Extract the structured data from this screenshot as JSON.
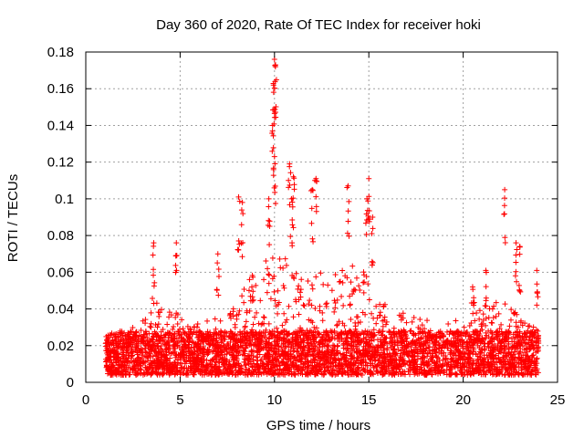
{
  "chart_data": {
    "type": "scatter",
    "title": "Day 360 of 2020, Rate Of TEC Index for receiver hoki",
    "xlabel": "GPS time / hours",
    "ylabel": "ROTI / TECUs",
    "xlim": [
      0,
      25
    ],
    "ylim": [
      0,
      0.18
    ],
    "xticks": [
      0,
      5,
      10,
      15,
      20,
      25
    ],
    "yticks": [
      0,
      0.02,
      0.04,
      0.06,
      0.08,
      0.1,
      0.12,
      0.14,
      0.16,
      0.18
    ],
    "ytick_labels": [
      "0",
      "0.02",
      "0.04",
      "0.06",
      "0.08",
      "0.1",
      "0.12",
      "0.14",
      "0.16",
      "0.18"
    ],
    "grid": true,
    "marker": "+",
    "color": "#ff0000",
    "x_range_of_data": [
      1.05,
      24.0
    ],
    "envelope_description": "dense band of points between roughly 0.005 and 0.03 TECU across the full time range, with elevated activity between about 8 and 16 hours",
    "notable_points": [
      {
        "x": 3.6,
        "y": 0.076
      },
      {
        "x": 4.8,
        "y": 0.076
      },
      {
        "x": 7.0,
        "y": 0.07
      },
      {
        "x": 8.1,
        "y": 0.101
      },
      {
        "x": 8.3,
        "y": 0.098
      },
      {
        "x": 9.7,
        "y": 0.1
      },
      {
        "x": 10.0,
        "y": 0.176
      },
      {
        "x": 10.05,
        "y": 0.172
      },
      {
        "x": 9.95,
        "y": 0.162
      },
      {
        "x": 9.9,
        "y": 0.14
      },
      {
        "x": 10.0,
        "y": 0.123
      },
      {
        "x": 10.8,
        "y": 0.119
      },
      {
        "x": 11.0,
        "y": 0.112
      },
      {
        "x": 10.9,
        "y": 0.1
      },
      {
        "x": 12.2,
        "y": 0.111
      },
      {
        "x": 12.0,
        "y": 0.105
      },
      {
        "x": 13.9,
        "y": 0.107
      },
      {
        "x": 15.0,
        "y": 0.111
      },
      {
        "x": 14.9,
        "y": 0.1
      },
      {
        "x": 15.2,
        "y": 0.09
      },
      {
        "x": 20.5,
        "y": 0.052
      },
      {
        "x": 21.2,
        "y": 0.061
      },
      {
        "x": 22.2,
        "y": 0.105
      },
      {
        "x": 22.8,
        "y": 0.076
      },
      {
        "x": 23.0,
        "y": 0.074
      },
      {
        "x": 23.9,
        "y": 0.061
      }
    ],
    "activity_profile": [
      [
        1.0,
        0.03
      ],
      [
        2.0,
        0.025
      ],
      [
        3.0,
        0.035
      ],
      [
        3.7,
        0.05
      ],
      [
        4.2,
        0.04
      ],
      [
        5.0,
        0.04
      ],
      [
        5.6,
        0.03
      ],
      [
        6.5,
        0.035
      ],
      [
        7.5,
        0.035
      ],
      [
        8.3,
        0.05
      ],
      [
        9.0,
        0.065
      ],
      [
        10.0,
        0.075
      ],
      [
        10.8,
        0.065
      ],
      [
        11.6,
        0.06
      ],
      [
        12.5,
        0.06
      ],
      [
        13.3,
        0.06
      ],
      [
        14.0,
        0.065
      ],
      [
        14.8,
        0.06
      ],
      [
        15.5,
        0.045
      ],
      [
        16.5,
        0.04
      ],
      [
        17.5,
        0.035
      ],
      [
        18.5,
        0.033
      ],
      [
        19.5,
        0.033
      ],
      [
        20.5,
        0.045
      ],
      [
        21.5,
        0.045
      ],
      [
        22.3,
        0.045
      ],
      [
        23.0,
        0.035
      ],
      [
        24.0,
        0.03
      ]
    ]
  }
}
